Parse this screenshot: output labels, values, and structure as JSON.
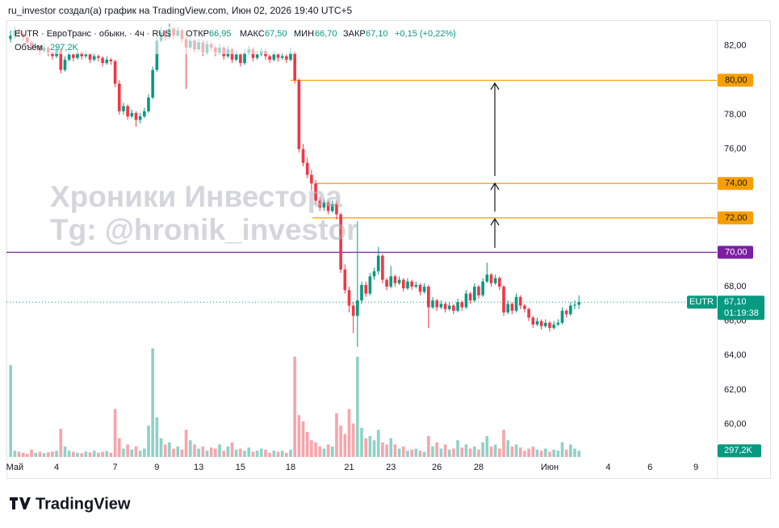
{
  "chart_data": {
    "type": "candlestick",
    "header": "ru_investor создал(а) график на TradingView.com, Июн 02, 2026 19:40 UTC+5",
    "symbol": "EUTR",
    "legend_title": "EUTR · ЕвроТранс · обыкн. · 4ч · RUS",
    "legend_fields": {
      "open": "ОТКР",
      "high": "МАКС",
      "low": "МИН",
      "close": "ЗАКР"
    },
    "last_labels": {
      "open": "66,95",
      "high": "67,50",
      "low": "66,70",
      "close": "67,10",
      "change": "+0,15 (+0,22%)"
    },
    "volume_title": "Объём",
    "last_volume_label": "297,2K",
    "countdown": "01:19:38",
    "watermark": [
      "Хроники Инвестора",
      "Tg: @hronik_investor"
    ],
    "footer": "TradingView",
    "up_color": "#089981",
    "down_color": "#f23645",
    "grid": false,
    "ylim": [
      58.1,
      83.4
    ],
    "yticks": [
      {
        "value": 60,
        "label": "60,00"
      },
      {
        "value": 62,
        "label": "62,00"
      },
      {
        "value": 64,
        "label": "64,00"
      },
      {
        "value": 66,
        "label": "66,00"
      },
      {
        "value": 68,
        "label": "68,00"
      },
      {
        "value": 70,
        "label": "70,00"
      },
      {
        "value": 72,
        "label": "72,00"
      },
      {
        "value": 74,
        "label": "74,00"
      },
      {
        "value": 76,
        "label": "76,00"
      },
      {
        "value": 78,
        "label": "78,00"
      },
      {
        "value": 80,
        "label": "80,00"
      },
      {
        "value": 82,
        "label": "82,00"
      }
    ],
    "xlim": [
      -1,
      169
    ],
    "xticks": [
      {
        "value": 1,
        "label": "Май"
      },
      {
        "value": 11,
        "label": "4"
      },
      {
        "value": 25,
        "label": "7"
      },
      {
        "value": 35,
        "label": "9"
      },
      {
        "value": 45,
        "label": "13"
      },
      {
        "value": 55,
        "label": "15"
      },
      {
        "value": 67,
        "label": "18"
      },
      {
        "value": 81,
        "label": "21"
      },
      {
        "value": 91,
        "label": "23"
      },
      {
        "value": 102,
        "label": "26"
      },
      {
        "value": 112,
        "label": "28"
      },
      {
        "value": 129,
        "label": "Июн"
      },
      {
        "value": 143,
        "label": "4"
      },
      {
        "value": 153,
        "label": "6"
      },
      {
        "value": 164,
        "label": "9"
      }
    ],
    "levels": [
      {
        "value": 80,
        "label": "80,00",
        "color": "#f59f00"
      },
      {
        "value": 74,
        "label": "74,00",
        "color": "#f59f00"
      },
      {
        "value": 72,
        "label": "72,00",
        "color": "#f59f00"
      },
      {
        "value": 70,
        "label": "70,00",
        "color": "#7b1fa2"
      }
    ],
    "volume_lim": [
      0,
      5800000
    ],
    "ohlc": [
      [
        82.4,
        82.9,
        82.2,
        82.6
      ],
      [
        82.6,
        83.1,
        82.4,
        82.9
      ],
      [
        82.9,
        83.0,
        82.5,
        82.7
      ],
      [
        82.7,
        82.8,
        82.3,
        82.5
      ],
      [
        82.5,
        82.6,
        82.0,
        82.2
      ],
      [
        82.2,
        82.3,
        81.7,
        81.9
      ],
      [
        81.9,
        82.2,
        81.8,
        82.0
      ],
      [
        82.0,
        82.1,
        81.5,
        81.7
      ],
      [
        81.7,
        82.1,
        81.6,
        81.9
      ],
      [
        81.9,
        82.0,
        81.4,
        81.6
      ],
      [
        81.6,
        81.7,
        81.2,
        81.4
      ],
      [
        81.4,
        82.0,
        81.3,
        81.8
      ],
      [
        81.8,
        81.9,
        80.4,
        80.6
      ],
      [
        80.6,
        81.4,
        80.5,
        81.2
      ],
      [
        81.2,
        81.7,
        81.1,
        81.5
      ],
      [
        81.5,
        81.6,
        81.1,
        81.3
      ],
      [
        81.3,
        81.8,
        81.2,
        81.6
      ],
      [
        81.6,
        81.7,
        81.2,
        81.4
      ],
      [
        81.4,
        81.7,
        81.3,
        81.5
      ],
      [
        81.5,
        81.6,
        81.0,
        81.2
      ],
      [
        81.2,
        81.6,
        81.1,
        81.4
      ],
      [
        81.4,
        81.5,
        81.1,
        81.3
      ],
      [
        81.3,
        81.4,
        80.8,
        81.0
      ],
      [
        81.0,
        81.4,
        80.9,
        81.2
      ],
      [
        81.2,
        81.3,
        80.9,
        81.1
      ],
      [
        81.1,
        81.2,
        79.6,
        79.8
      ],
      [
        79.8,
        80.0,
        78.0,
        78.2
      ],
      [
        78.2,
        78.7,
        78.0,
        78.5
      ],
      [
        78.5,
        78.6,
        77.7,
        77.9
      ],
      [
        77.9,
        78.3,
        77.8,
        78.1
      ],
      [
        78.1,
        78.2,
        77.3,
        77.7
      ],
      [
        77.7,
        78.1,
        77.5,
        77.9
      ],
      [
        77.9,
        78.4,
        77.8,
        78.2
      ],
      [
        78.2,
        79.2,
        78.1,
        79.0
      ],
      [
        79.0,
        80.8,
        78.9,
        80.6
      ],
      [
        80.6,
        82.5,
        80.5,
        82.3
      ],
      [
        82.3,
        83.1,
        82.2,
        82.8
      ],
      [
        82.8,
        82.9,
        82.3,
        82.5
      ],
      [
        82.5,
        83.3,
        82.4,
        83.0
      ],
      [
        83.0,
        83.1,
        82.4,
        82.6
      ],
      [
        82.6,
        83.1,
        82.5,
        82.9
      ],
      [
        82.9,
        83.0,
        82.2,
        82.4
      ],
      [
        82.4,
        82.5,
        79.5,
        81.9
      ],
      [
        81.9,
        82.5,
        81.8,
        82.3
      ],
      [
        82.3,
        82.4,
        81.6,
        81.8
      ],
      [
        81.8,
        82.4,
        81.7,
        82.2
      ],
      [
        82.2,
        82.3,
        81.4,
        81.6
      ],
      [
        81.6,
        82.3,
        81.5,
        82.1
      ],
      [
        82.1,
        82.2,
        81.7,
        81.9
      ],
      [
        81.9,
        82.0,
        81.4,
        81.6
      ],
      [
        81.6,
        82.1,
        81.5,
        81.9
      ],
      [
        81.9,
        82.0,
        81.2,
        81.4
      ],
      [
        81.4,
        82.0,
        81.3,
        81.8
      ],
      [
        81.8,
        81.9,
        81.0,
        81.2
      ],
      [
        81.2,
        81.7,
        81.1,
        81.5
      ],
      [
        81.5,
        81.6,
        80.8,
        81.0
      ],
      [
        81.0,
        81.8,
        80.9,
        81.6
      ],
      [
        81.6,
        82.0,
        81.5,
        81.8
      ],
      [
        81.8,
        81.9,
        81.1,
        81.3
      ],
      [
        81.3,
        81.7,
        81.2,
        81.5
      ],
      [
        81.5,
        81.9,
        81.4,
        81.7
      ],
      [
        81.7,
        81.8,
        81.2,
        81.4
      ],
      [
        81.4,
        81.5,
        81.0,
        81.2
      ],
      [
        81.2,
        81.7,
        81.1,
        81.5
      ],
      [
        81.5,
        81.6,
        81.1,
        81.3
      ],
      [
        81.3,
        81.6,
        81.2,
        81.4
      ],
      [
        81.4,
        81.5,
        81.0,
        81.2
      ],
      [
        81.2,
        81.9,
        81.1,
        81.6
      ],
      [
        81.6,
        81.7,
        79.8,
        80.0
      ],
      [
        80.0,
        80.1,
        75.8,
        76.0
      ],
      [
        76.0,
        76.3,
        75.0,
        75.2
      ],
      [
        75.2,
        75.5,
        74.3,
        74.5
      ],
      [
        74.5,
        74.8,
        73.6,
        74.0
      ],
      [
        74.0,
        74.2,
        72.8,
        73.0
      ],
      [
        73.0,
        73.2,
        72.4,
        72.6
      ],
      [
        72.6,
        73.1,
        72.4,
        72.9
      ],
      [
        72.9,
        73.0,
        72.2,
        72.4
      ],
      [
        72.4,
        73.0,
        72.3,
        72.8
      ],
      [
        72.8,
        73.0,
        71.9,
        72.2
      ],
      [
        72.2,
        72.3,
        68.8,
        69.0
      ],
      [
        69.0,
        69.3,
        67.6,
        67.8
      ],
      [
        67.8,
        68.0,
        66.5,
        66.9
      ],
      [
        66.9,
        67.1,
        65.3,
        66.3
      ],
      [
        66.3,
        71.8,
        64.5,
        67.2
      ],
      [
        67.2,
        68.3,
        67.0,
        68.1
      ],
      [
        68.1,
        68.3,
        67.4,
        67.6
      ],
      [
        67.6,
        68.8,
        67.5,
        68.6
      ],
      [
        68.6,
        69.1,
        68.4,
        68.9
      ],
      [
        68.9,
        70.3,
        68.7,
        69.8
      ],
      [
        69.8,
        69.9,
        68.2,
        68.4
      ],
      [
        68.4,
        68.5,
        67.8,
        68.0
      ],
      [
        68.0,
        69.2,
        67.9,
        68.6
      ],
      [
        68.6,
        68.7,
        68.0,
        68.2
      ],
      [
        68.2,
        68.6,
        68.1,
        68.4
      ],
      [
        68.4,
        68.5,
        67.7,
        67.9
      ],
      [
        67.9,
        68.5,
        67.8,
        68.3
      ],
      [
        68.3,
        68.4,
        67.8,
        68.0
      ],
      [
        68.0,
        68.3,
        67.9,
        68.1
      ],
      [
        68.1,
        68.2,
        67.5,
        67.7
      ],
      [
        67.7,
        68.2,
        67.6,
        68.0
      ],
      [
        68.0,
        68.1,
        65.6,
        66.8
      ],
      [
        66.8,
        67.4,
        66.7,
        67.2
      ],
      [
        67.2,
        67.3,
        66.6,
        66.8
      ],
      [
        66.8,
        67.2,
        66.7,
        67.0
      ],
      [
        67.0,
        67.1,
        66.5,
        66.7
      ],
      [
        66.7,
        67.1,
        66.6,
        66.9
      ],
      [
        66.9,
        67.0,
        66.4,
        66.6
      ],
      [
        66.6,
        67.3,
        66.5,
        67.1
      ],
      [
        67.1,
        67.2,
        66.6,
        66.8
      ],
      [
        66.8,
        67.8,
        66.7,
        67.6
      ],
      [
        67.6,
        67.7,
        67.0,
        67.2
      ],
      [
        67.2,
        68.2,
        67.1,
        68.0
      ],
      [
        68.0,
        68.1,
        67.3,
        67.5
      ],
      [
        67.5,
        68.5,
        67.4,
        68.3
      ],
      [
        68.3,
        69.4,
        68.2,
        68.7
      ],
      [
        68.7,
        68.8,
        68.0,
        68.2
      ],
      [
        68.2,
        68.7,
        68.1,
        68.5
      ],
      [
        68.5,
        68.6,
        67.8,
        68.0
      ],
      [
        68.0,
        68.1,
        66.3,
        66.5
      ],
      [
        66.5,
        67.2,
        66.4,
        67.0
      ],
      [
        67.0,
        67.1,
        66.4,
        66.6
      ],
      [
        66.6,
        67.6,
        66.5,
        67.4
      ],
      [
        67.4,
        67.5,
        66.7,
        66.9
      ],
      [
        66.9,
        67.0,
        66.5,
        66.7
      ],
      [
        66.7,
        66.8,
        66.0,
        66.2
      ],
      [
        66.2,
        66.3,
        65.6,
        65.8
      ],
      [
        65.8,
        66.2,
        65.7,
        66.0
      ],
      [
        66.0,
        66.1,
        65.5,
        65.7
      ],
      [
        65.7,
        66.1,
        65.6,
        65.9
      ],
      [
        65.9,
        66.0,
        65.4,
        65.6
      ],
      [
        65.6,
        66.0,
        65.5,
        65.8
      ],
      [
        65.8,
        66.1,
        65.7,
        65.9
      ],
      [
        65.9,
        66.8,
        65.8,
        66.6
      ],
      [
        66.6,
        66.7,
        66.2,
        66.4
      ],
      [
        66.4,
        67.1,
        66.3,
        66.9
      ],
      [
        66.9,
        67.2,
        66.7,
        66.95
      ],
      [
        66.95,
        67.5,
        66.7,
        67.1
      ]
    ],
    "volume": [
      4400000,
      300000,
      250000,
      200000,
      150000,
      350000,
      200000,
      250000,
      180000,
      220000,
      260000,
      300000,
      1350000,
      500000,
      300000,
      250000,
      200000,
      180000,
      260000,
      220000,
      300000,
      200000,
      250000,
      280000,
      200000,
      2300000,
      900000,
      400000,
      600000,
      350000,
      500000,
      300000,
      400000,
      1500000,
      5200000,
      1900000,
      900000,
      600000,
      700000,
      400000,
      500000,
      350000,
      1300000,
      800000,
      600000,
      400000,
      500000,
      300000,
      450000,
      400000,
      600000,
      300000,
      500000,
      700000,
      350000,
      400000,
      300000,
      450000,
      250000,
      300000,
      400000,
      350000,
      200000,
      300000,
      250000,
      300000,
      200000,
      350000,
      4800000,
      2000000,
      1700000,
      1200000,
      800000,
      700000,
      500000,
      400000,
      600000,
      500000,
      2100000,
      1500000,
      1100000,
      2300000,
      1600000,
      4800000,
      1400000,
      900000,
      1000000,
      800000,
      1300000,
      700000,
      600000,
      900000,
      600000,
      400000,
      500000,
      300000,
      350000,
      400000,
      300000,
      250000,
      1000000,
      500000,
      700000,
      400000,
      600000,
      350000,
      400000,
      800000,
      450000,
      600000,
      400000,
      500000,
      350000,
      700000,
      1000000,
      500000,
      600000,
      400000,
      1300000,
      800000,
      500000,
      600000,
      450000,
      300000,
      400000,
      500000,
      350000,
      300000,
      400000,
      250000,
      350000,
      300000,
      700000,
      350000,
      600000,
      400000,
      297200
    ]
  }
}
